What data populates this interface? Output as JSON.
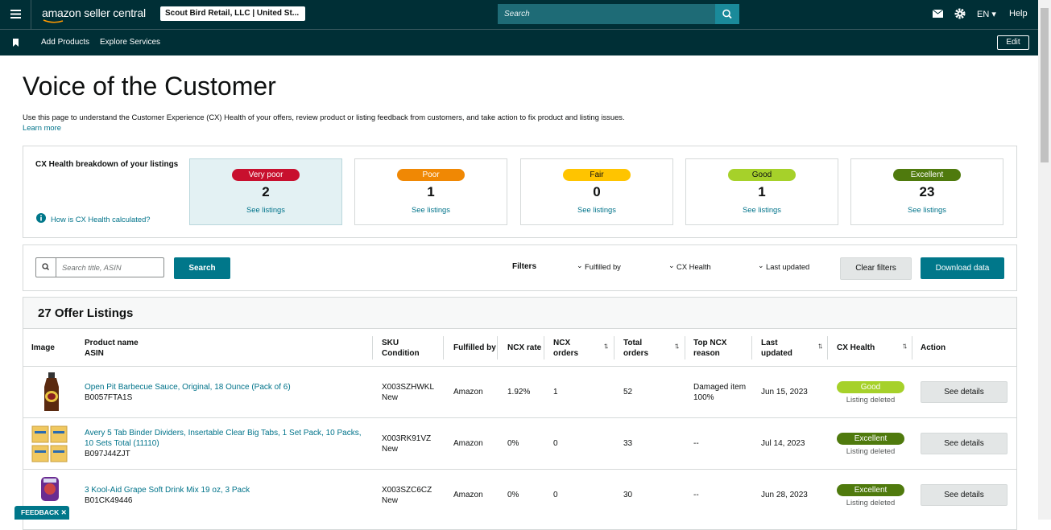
{
  "header": {
    "logo": "amazon seller central",
    "store": "Scout Bird Retail, LLC | United St...",
    "search_placeholder": "Search",
    "language": "EN",
    "help": "Help"
  },
  "nav": {
    "items": [
      "Add Products",
      "Explore Services"
    ],
    "edit": "Edit"
  },
  "page": {
    "title": "Voice of the Customer",
    "description": "Use this page to understand the Customer Experience (CX) Health of your offers, review product or listing feedback from customers, and take action to fix product and listing issues.",
    "learn_more": "Learn more"
  },
  "cx_health": {
    "heading": "CX Health breakdown of your listings",
    "help_link": "How is CX Health calculated?",
    "cards": [
      {
        "label": "Very poor",
        "count": 2,
        "link": "See listings",
        "color": "#c8102e"
      },
      {
        "label": "Poor",
        "count": 1,
        "link": "See listings",
        "color": "#f08804"
      },
      {
        "label": "Fair",
        "count": 0,
        "link": "See listings",
        "color": "#ffc400"
      },
      {
        "label": "Good",
        "count": 1,
        "link": "See listings",
        "color": "#a6d12a"
      },
      {
        "label": "Excellent",
        "count": 23,
        "link": "See listings",
        "color": "#4f7a0d"
      }
    ]
  },
  "filters": {
    "search_placeholder": "Search title, ASIN",
    "search_button": "Search",
    "label": "Filters",
    "dropdowns": [
      "Fulfilled by",
      "CX Health",
      "Last updated"
    ],
    "clear": "Clear filters",
    "download": "Download data"
  },
  "table": {
    "title": "27 Offer Listings",
    "columns": [
      [
        "Image"
      ],
      [
        "Product name",
        "ASIN"
      ],
      [
        "SKU",
        "Condition"
      ],
      [
        "Fulfilled by"
      ],
      [
        "NCX rate"
      ],
      [
        "NCX",
        "orders"
      ],
      [
        "Total",
        "orders"
      ],
      [
        "Top NCX",
        "reason"
      ],
      [
        "Last",
        "updated"
      ],
      [
        "CX Health"
      ],
      [
        "Action"
      ]
    ],
    "rows": [
      {
        "product": "Open Pit Barbecue Sauce, Original, 18 Ounce (Pack of 6)",
        "asin": "B0057FTA1S",
        "sku": "X003SZHWKL",
        "condition": "New",
        "fulfilled_by": "Amazon",
        "ncx_rate": "1.92%",
        "ncx_orders": "1",
        "total_orders": "52",
        "reason": [
          "Damaged item",
          "100%"
        ],
        "last_updated": "Jun 15, 2023",
        "cx_health": "Good",
        "status": "Listing deleted",
        "action": "See details"
      },
      {
        "product": "Avery 5 Tab Binder Dividers, Insertable Clear Big Tabs, 1 Set Pack, 10 Packs, 10 Sets Total (11110)",
        "asin": "B097J44ZJT",
        "sku": "X003RK91VZ",
        "condition": "New",
        "fulfilled_by": "Amazon",
        "ncx_rate": "0%",
        "ncx_orders": "0",
        "total_orders": "33",
        "reason": [
          "--"
        ],
        "last_updated": "Jul 14, 2023",
        "cx_health": "Excellent",
        "status": "Listing deleted",
        "action": "See details"
      },
      {
        "product": "3 Kool-Aid Grape Soft Drink Mix 19 oz, 3 Pack",
        "asin": "B01CK49446",
        "sku": "X003SZC6CZ",
        "condition": "New",
        "fulfilled_by": "Amazon",
        "ncx_rate": "0%",
        "ncx_orders": "0",
        "total_orders": "30",
        "reason": [
          "--"
        ],
        "last_updated": "Jun 28, 2023",
        "cx_health": "Excellent",
        "status": "Listing deleted",
        "action": "See details"
      }
    ]
  },
  "feedback": "FEEDBACK"
}
